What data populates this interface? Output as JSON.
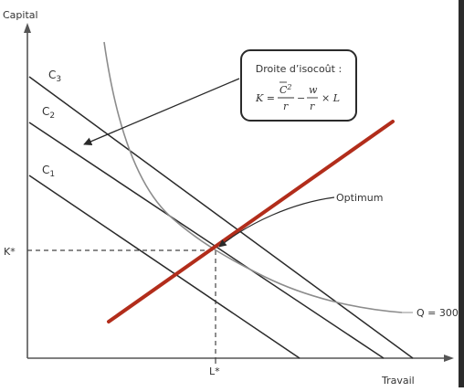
{
  "diagram": {
    "y_axis_label": "Capital",
    "x_axis_label": "Travail",
    "k_star_label": "K*",
    "l_star_label": "L*",
    "isocost_labels": [
      "C",
      "C",
      "C"
    ],
    "isocost_subscripts": [
      "1",
      "2",
      "3"
    ],
    "isoquant_label": "Q = 300",
    "optimum_label": "Optimum",
    "callout": {
      "title": "Droite d’isocoût :",
      "lhs": "K =",
      "c_symbol": "C",
      "c_sub": "2",
      "r_denom_1": "r",
      "minus": "−",
      "w_symbol": "w",
      "r_denom_2": "r",
      "times_L": "× L"
    },
    "colors": {
      "expansion_path": "#b22d1b",
      "isoquant": "#8c8c8c",
      "lines": "#2a2a2a"
    }
  }
}
